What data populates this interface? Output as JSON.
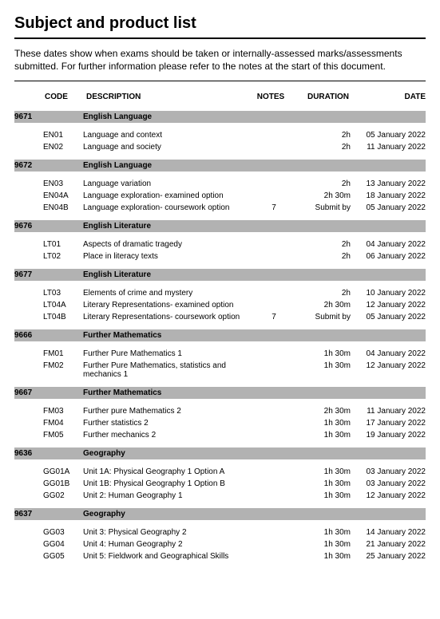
{
  "title": "Subject and product list",
  "intro": "These dates show when exams should be taken or internally-assessed marks/assessments submitted.  For further information please refer to the notes at the start of this document.",
  "headers": {
    "code": "CODE",
    "description": "DESCRIPTION",
    "notes": "NOTES",
    "duration": "DURATION",
    "date": "DATE"
  },
  "colors": {
    "section_bg": "#b2b2b2",
    "text": "#000000",
    "bg": "#ffffff"
  },
  "sections": [
    {
      "subject_code": "9671",
      "subject_name": "English Language",
      "rows": [
        {
          "code": "EN01",
          "desc": "Language and context",
          "notes": "",
          "duration": "2h",
          "date": "05 January 2022"
        },
        {
          "code": "EN02",
          "desc": "Language and society",
          "notes": "",
          "duration": "2h",
          "date": "11 January 2022"
        }
      ]
    },
    {
      "subject_code": "9672",
      "subject_name": "English Language",
      "rows": [
        {
          "code": "EN03",
          "desc": "Language variation",
          "notes": "",
          "duration": "2h",
          "date": "13 January 2022"
        },
        {
          "code": "EN04A",
          "desc": "Language exploration- examined option",
          "notes": "",
          "duration": "2h 30m",
          "date": "18 January 2022"
        },
        {
          "code": "EN04B",
          "desc": "Language exploration- coursework option",
          "notes": "7",
          "duration": "Submit by",
          "date": "05 January 2022"
        }
      ]
    },
    {
      "subject_code": "9676",
      "subject_name": "English Literature",
      "rows": [
        {
          "code": "LT01",
          "desc": "Aspects of dramatic tragedy",
          "notes": "",
          "duration": "2h",
          "date": "04 January 2022"
        },
        {
          "code": "LT02",
          "desc": "Place in literacy texts",
          "notes": "",
          "duration": "2h",
          "date": "06 January 2022"
        }
      ]
    },
    {
      "subject_code": "9677",
      "subject_name": "English Literature",
      "rows": [
        {
          "code": "LT03",
          "desc": "Elements of crime and mystery",
          "notes": "",
          "duration": "2h",
          "date": "10 January 2022"
        },
        {
          "code": "LT04A",
          "desc": "Literary Representations- examined option",
          "notes": "",
          "duration": "2h 30m",
          "date": "12 January 2022"
        },
        {
          "code": "LT04B",
          "desc": "Literary Representations- coursework option",
          "notes": "7",
          "duration": "Submit by",
          "date": "05 January 2022"
        }
      ]
    },
    {
      "subject_code": "9666",
      "subject_name": "Further Mathematics",
      "rows": [
        {
          "code": "FM01",
          "desc": "Further Pure Mathematics 1",
          "notes": "",
          "duration": "1h 30m",
          "date": "04 January 2022"
        },
        {
          "code": "FM02",
          "desc": "Further Pure Mathematics, statistics and mechanics 1",
          "notes": "",
          "duration": "1h 30m",
          "date": "12 January 2022"
        }
      ]
    },
    {
      "subject_code": "9667",
      "subject_name": "Further Mathematics",
      "rows": [
        {
          "code": "FM03",
          "desc": "Further pure Mathematics 2",
          "notes": "",
          "duration": "2h 30m",
          "date": "11 January 2022"
        },
        {
          "code": "FM04",
          "desc": "Further statistics 2",
          "notes": "",
          "duration": "1h 30m",
          "date": "17 January 2022"
        },
        {
          "code": "FM05",
          "desc": "Further mechanics 2",
          "notes": "",
          "duration": "1h 30m",
          "date": "19 January 2022"
        }
      ]
    },
    {
      "subject_code": "9636",
      "subject_name": "Geography",
      "rows": [
        {
          "code": "GG01A",
          "desc": "Unit 1A: Physical Geography 1 Option A",
          "notes": "",
          "duration": "1h 30m",
          "date": "03 January 2022"
        },
        {
          "code": "GG01B",
          "desc": "Unit 1B: Physical Geography 1 Option B",
          "notes": "",
          "duration": "1h 30m",
          "date": "03 January 2022"
        },
        {
          "code": "GG02",
          "desc": "Unit 2: Human Geography 1",
          "notes": "",
          "duration": "1h 30m",
          "date": "12 January 2022"
        }
      ]
    },
    {
      "subject_code": "9637",
      "subject_name": "Geography",
      "rows": [
        {
          "code": "GG03",
          "desc": "Unit 3: Physical Geography 2",
          "notes": "",
          "duration": "1h 30m",
          "date": "14 January 2022"
        },
        {
          "code": "GG04",
          "desc": "Unit 4: Human Geography 2",
          "notes": "",
          "duration": "1h 30m",
          "date": "21 January 2022"
        },
        {
          "code": "GG05",
          "desc": "Unit 5: Fieldwork and Geographical Skills",
          "notes": "",
          "duration": "1h 30m",
          "date": "25 January 2022"
        }
      ]
    }
  ]
}
